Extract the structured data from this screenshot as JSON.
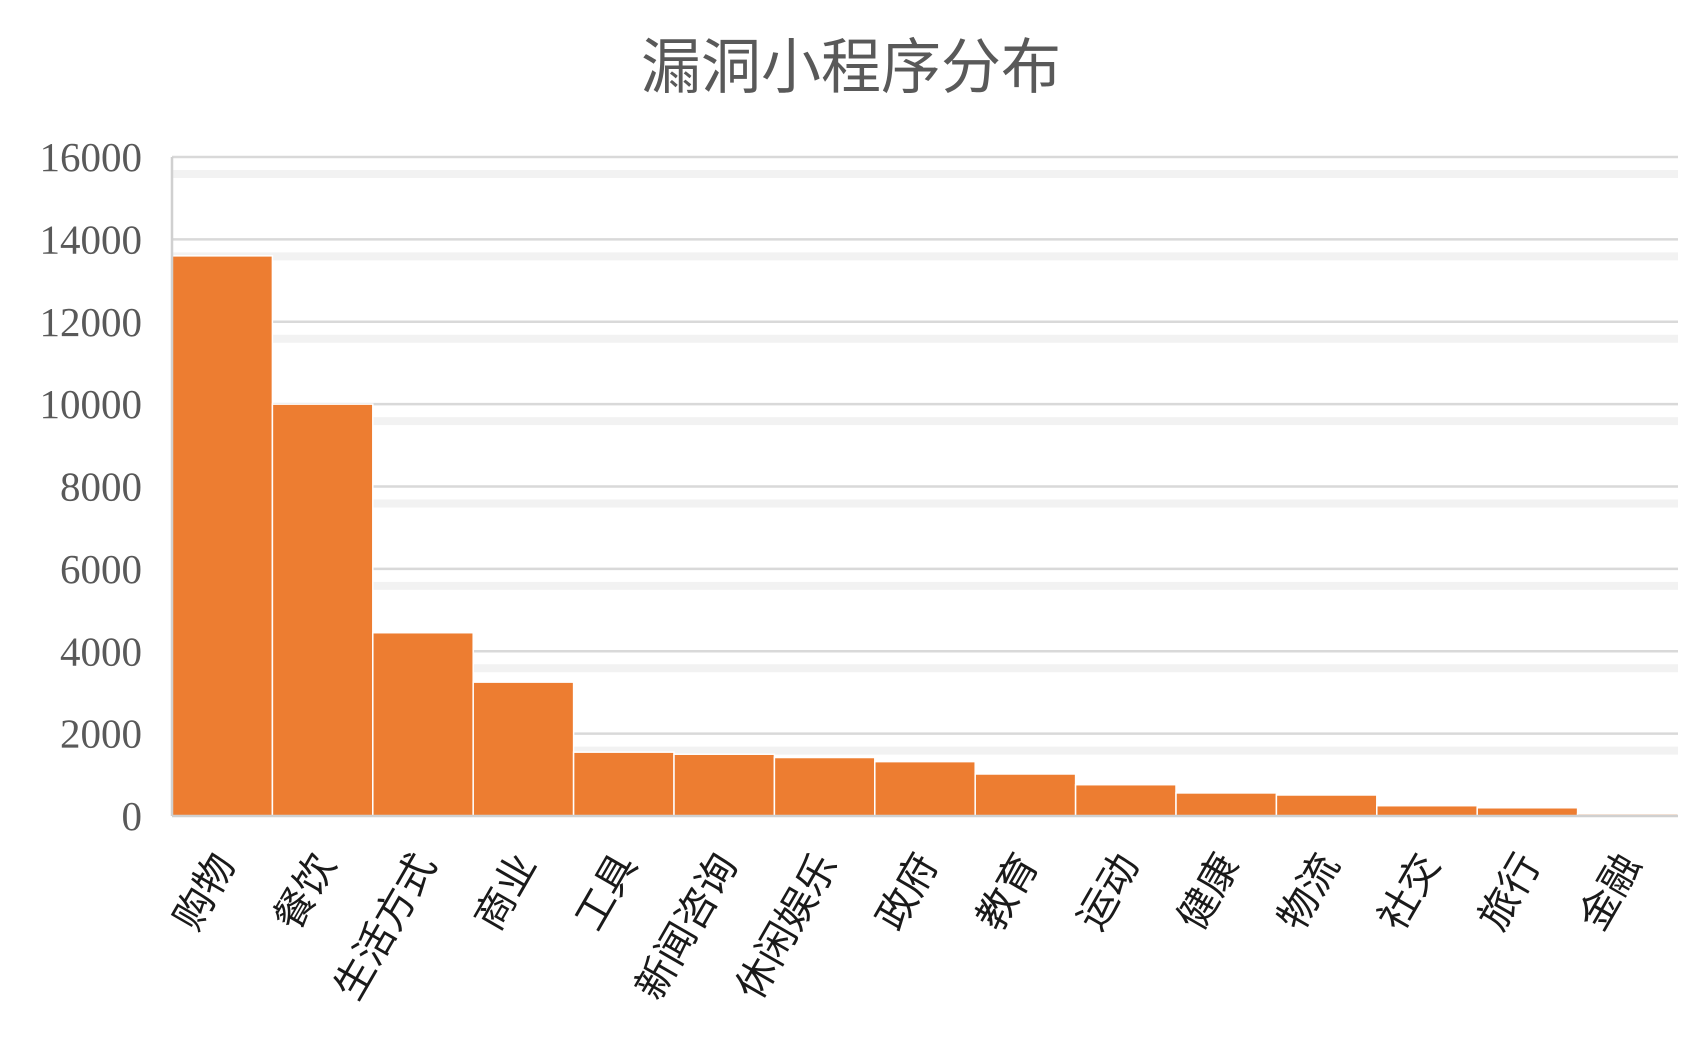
{
  "chart_data": {
    "type": "bar",
    "title": "漏洞小程序分布",
    "xlabel": "",
    "ylabel": "",
    "categories": [
      "购物",
      "餐饮",
      "生活方式",
      "商业",
      "工具",
      "新闻咨询",
      "休闲娱乐",
      "政府",
      "教育",
      "运动",
      "健康",
      "物流",
      "社交",
      "旅行",
      "金融"
    ],
    "values": [
      13600,
      10000,
      4450,
      3250,
      1550,
      1500,
      1420,
      1320,
      1020,
      760,
      560,
      510,
      250,
      200,
      50
    ],
    "ylim": [
      0,
      16000
    ],
    "yticks": [
      "0",
      "2000",
      "4000",
      "6000",
      "8000",
      "10000",
      "12000",
      "14000",
      "16000"
    ],
    "grid": true,
    "legend": "none",
    "bar_color": "#ED7D31"
  }
}
